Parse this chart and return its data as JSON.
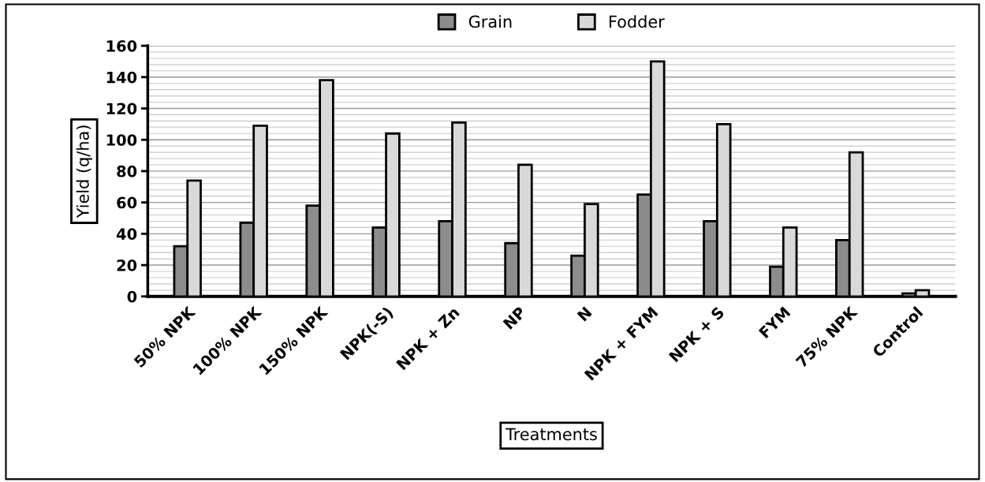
{
  "chart_data": {
    "type": "bar",
    "xlabel": "Treatments",
    "ylabel": "Yield (q/ha)",
    "categories": [
      "50% NPK",
      "100% NPK",
      "150% NPK",
      "NPK(-S)",
      "NPK + Zn",
      "NP",
      "N",
      "NPK + FYM",
      "NPK + S",
      "FYM",
      "75% NPK",
      "Control"
    ],
    "series": [
      {
        "name": "Grain",
        "color": "#8c8c8c",
        "values": [
          32,
          47,
          58,
          44,
          48,
          34,
          26,
          65,
          48,
          19,
          36,
          2
        ]
      },
      {
        "name": "Fodder",
        "color": "#d9d9d9",
        "values": [
          74,
          109,
          138,
          104,
          111,
          84,
          59,
          150,
          110,
          44,
          92,
          4
        ]
      }
    ],
    "ylim": [
      0,
      160
    ],
    "yticks": [
      0,
      20,
      40,
      60,
      80,
      100,
      120,
      140,
      160
    ],
    "grid": "y",
    "legend": "top"
  }
}
